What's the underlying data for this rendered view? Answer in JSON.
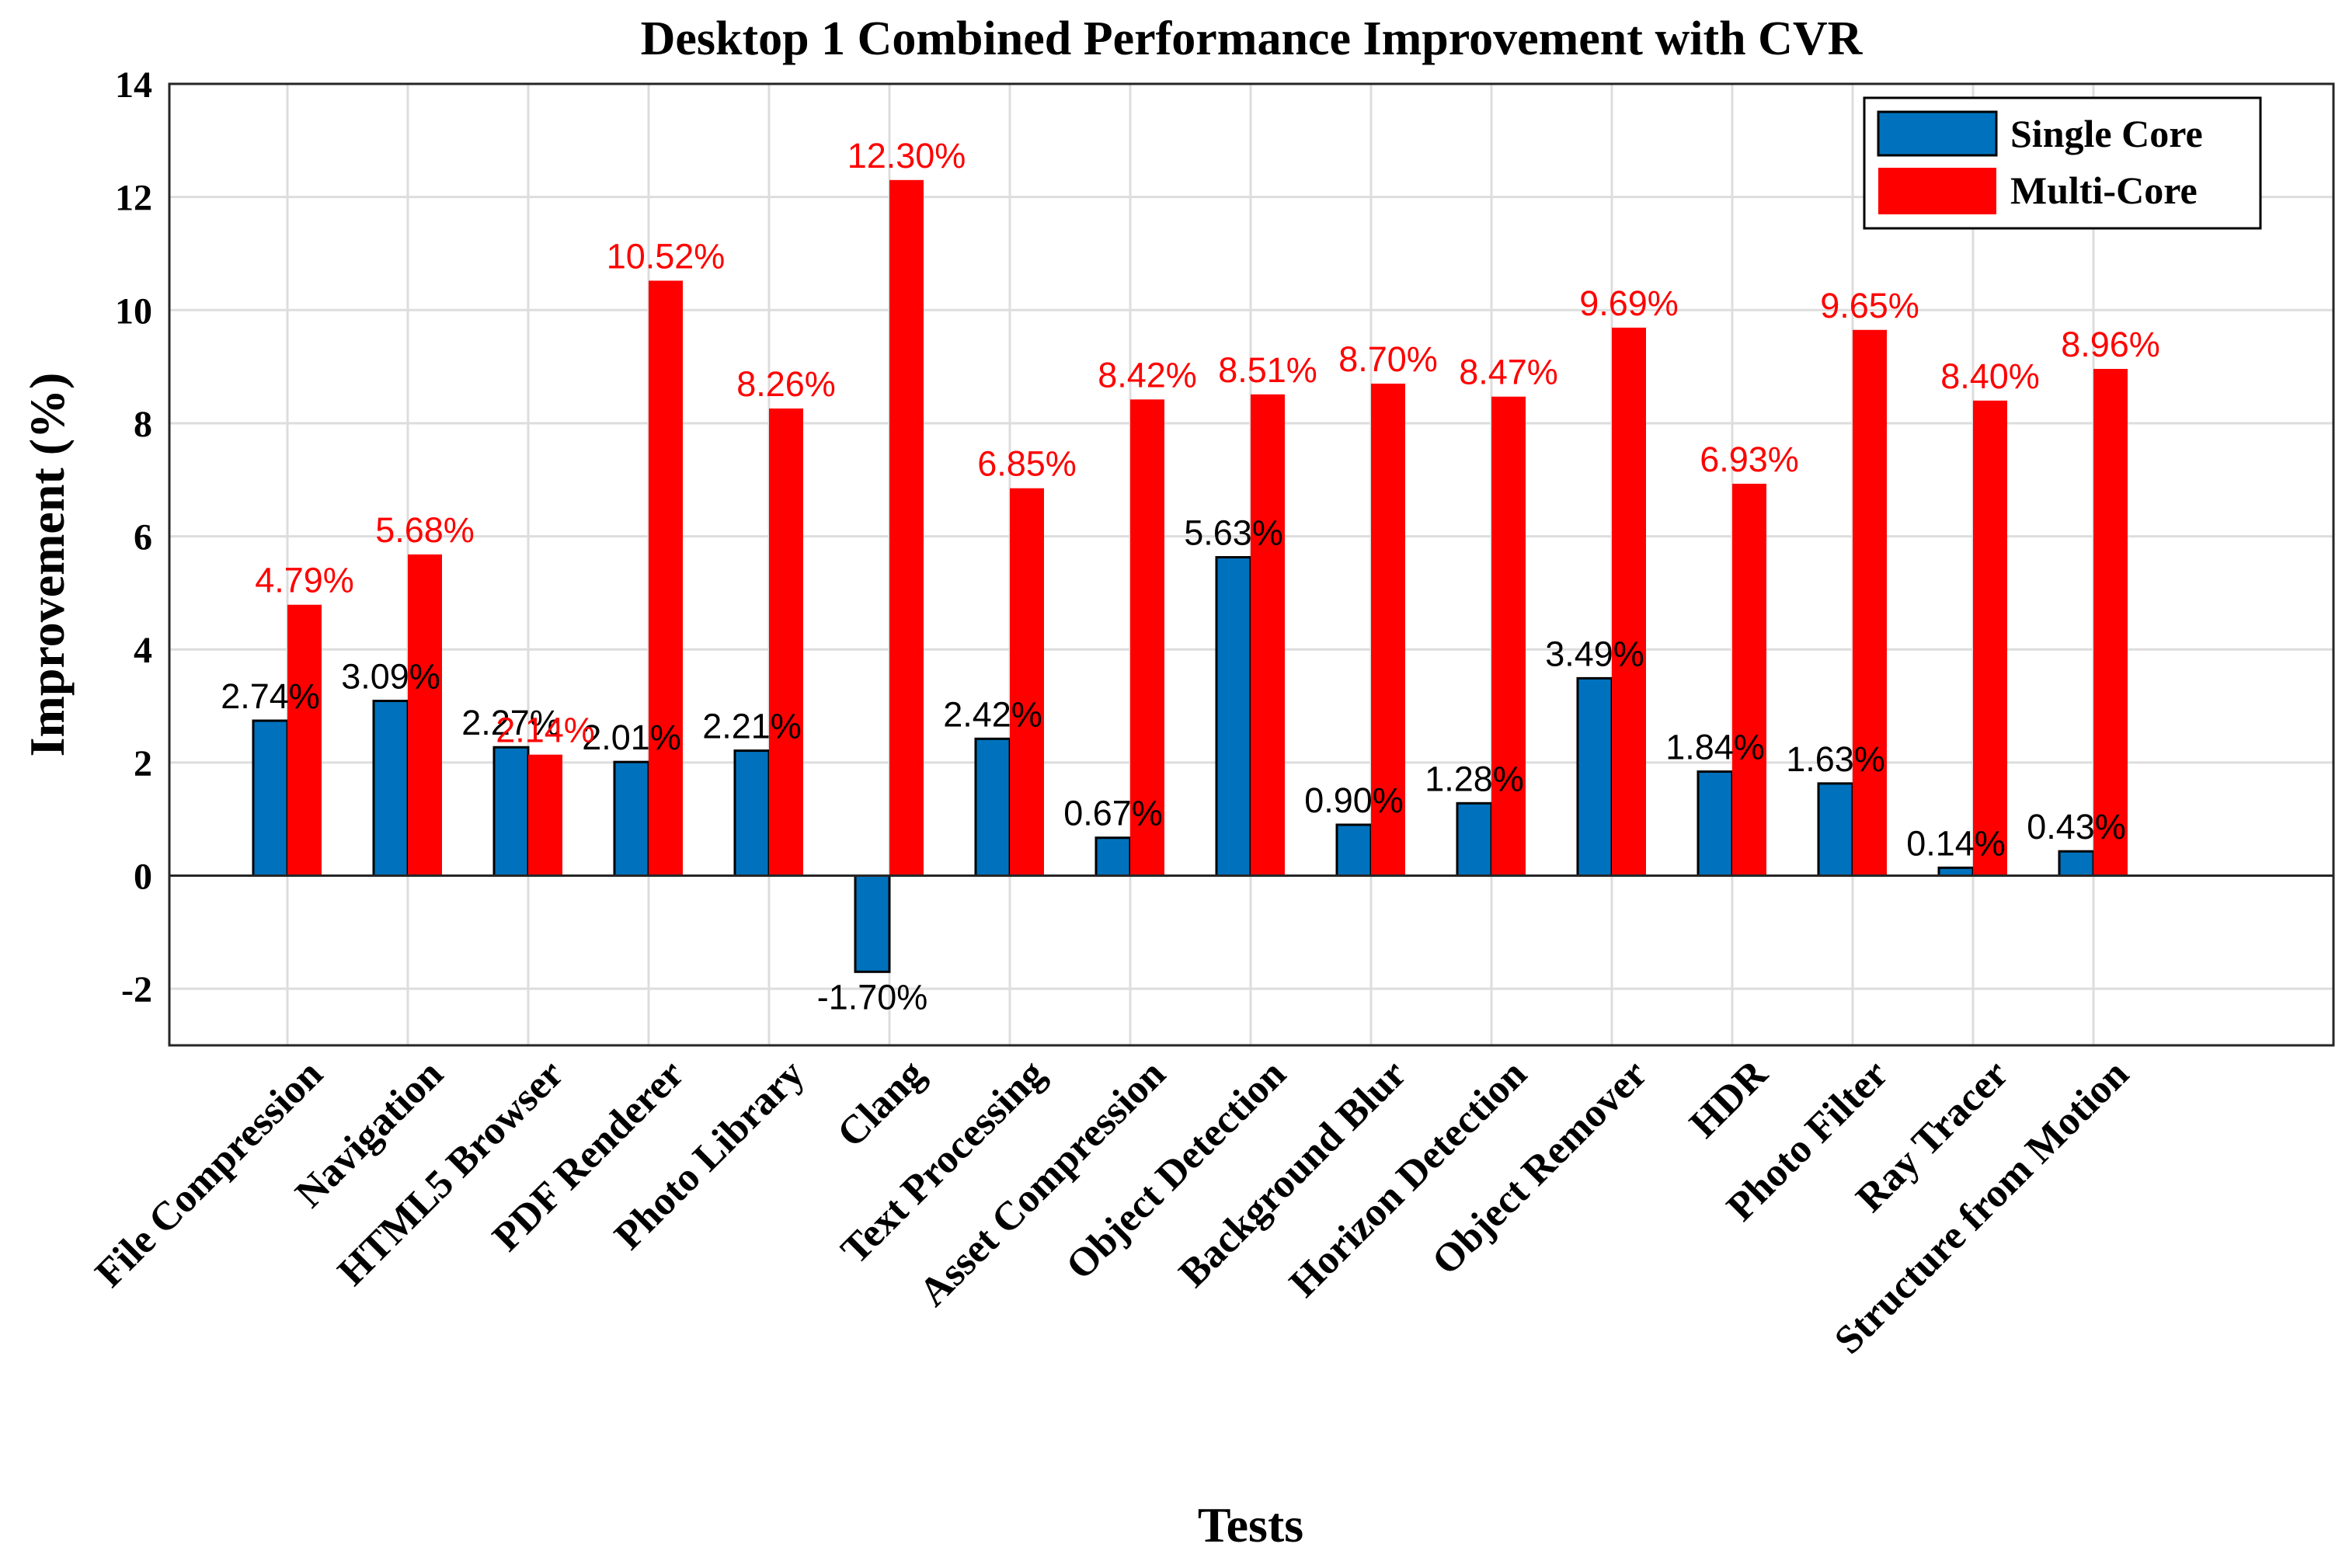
{
  "chart_data": {
    "type": "bar",
    "title": "Desktop 1 Combined Performance Improvement with CVR",
    "xlabel": "Tests",
    "ylabel": "Improvement (%)",
    "ylim": [
      -3,
      14
    ],
    "yticks": [
      -2,
      0,
      2,
      4,
      6,
      8,
      10,
      12,
      14
    ],
    "grid": true,
    "legend_position": "top-right",
    "categories": [
      "File Compression",
      "Navigation",
      "HTML5 Browser",
      "PDF Renderer",
      "Photo Library",
      "Clang",
      "Text Processing",
      "Asset Compression",
      "Object Detection",
      "Background Blur",
      "Horizon Detection",
      "Object Remover",
      "HDR",
      "Photo Filter",
      "Ray Tracer",
      "Structure from Motion"
    ],
    "series": [
      {
        "name": "Single Core",
        "color": "#0072BD",
        "label_color": "#000000",
        "values": [
          2.74,
          3.09,
          2.27,
          2.01,
          2.21,
          -1.7,
          2.42,
          0.67,
          5.63,
          0.9,
          1.28,
          3.49,
          1.84,
          1.63,
          0.14,
          0.43
        ],
        "labels": [
          "2.74%",
          "3.09%",
          "2.27%",
          "2.01%",
          "2.21%",
          "-1.70%",
          "2.42%",
          "0.67%",
          "5.63%",
          "0.90%",
          "1.28%",
          "3.49%",
          "1.84%",
          "1.63%",
          "0.14%",
          "0.43%"
        ]
      },
      {
        "name": "Multi-Core",
        "color": "#FF0000",
        "label_color": "#FF0000",
        "values": [
          4.79,
          5.68,
          2.14,
          10.52,
          8.26,
          12.3,
          6.85,
          8.42,
          8.51,
          8.7,
          8.47,
          9.69,
          6.93,
          9.65,
          8.4,
          8.96
        ],
        "labels": [
          "4.79%",
          "5.68%",
          "2.14%",
          "10.52%",
          "8.26%",
          "12.30%",
          "6.85%",
          "8.42%",
          "8.51%",
          "8.70%",
          "8.47%",
          "9.69%",
          "6.93%",
          "9.65%",
          "8.40%",
          "8.96%"
        ]
      }
    ]
  }
}
